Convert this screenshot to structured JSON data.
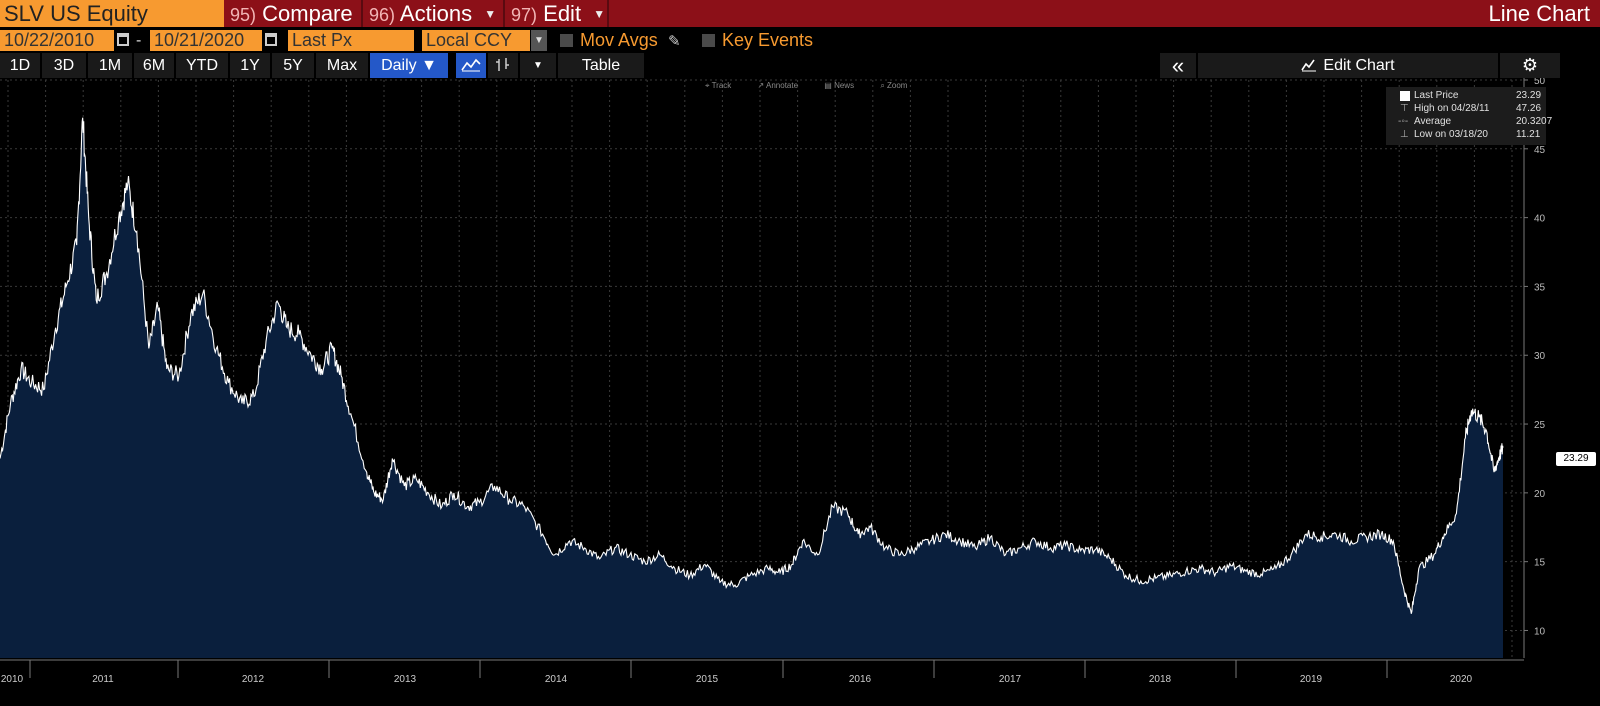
{
  "topbar": {
    "ticker": "SLV US Equity",
    "compare_num": "95)",
    "compare_label": "Compare",
    "actions_num": "96)",
    "actions_label": "Actions",
    "edit_num": "97)",
    "edit_label": "Edit",
    "title": "Line Chart"
  },
  "controls": {
    "start_date": "10/22/2010",
    "end_date": "10/21/2020",
    "dash": "-",
    "field": "Last Px",
    "currency": "Local CCY",
    "mov_avgs": "Mov Avgs",
    "key_events": "Key Events"
  },
  "ranges": [
    "1D",
    "3D",
    "1M",
    "6M",
    "YTD",
    "1Y",
    "5Y",
    "Max"
  ],
  "toolbar": {
    "period": "Daily",
    "table": "Table",
    "edit_chart": "Edit Chart",
    "collapse": "«"
  },
  "minitools": [
    "Track",
    "Annotate",
    "News",
    "Zoom"
  ],
  "legend": {
    "last_label": "Last Price",
    "last_value": "23.29",
    "high_label": "High on 04/28/11",
    "high_value": "47.26",
    "avg_label": "Average",
    "avg_value": "20.3207",
    "low_label": "Low on 03/18/20",
    "low_value": "11.21"
  },
  "colors": {
    "accent": "#f79a30",
    "topbar": "#8c1018",
    "area_fill": "#0a1f3d",
    "line": "#ffffff",
    "selected": "#2458c8"
  },
  "chart_data": {
    "type": "area",
    "ylim": [
      8,
      50
    ],
    "yticks": [
      10,
      15,
      20,
      25,
      30,
      35,
      40,
      45,
      50
    ],
    "xticks": [
      "2010",
      "2011",
      "2012",
      "2013",
      "2014",
      "2015",
      "2016",
      "2017",
      "2018",
      "2019",
      "2020"
    ],
    "last_value": "23.29",
    "series": [
      {
        "x": [
          2010.81,
          2010.88,
          2010.95,
          2011.02,
          2011.1,
          2011.18,
          2011.25,
          2011.32,
          2011.36,
          2011.4,
          2011.45,
          2011.52,
          2011.6,
          2011.66,
          2011.72,
          2011.8,
          2011.86,
          2011.92,
          2012.0,
          2012.08,
          2012.16,
          2012.25,
          2012.33,
          2012.42,
          2012.5,
          2012.58,
          2012.66,
          2012.72,
          2012.8,
          2012.88,
          2012.95,
          2013.02,
          2013.08,
          2013.15,
          2013.25,
          2013.3,
          2013.36,
          2013.42,
          2013.5,
          2013.58,
          2013.66,
          2013.75,
          2013.83,
          2013.92,
          2014.0,
          2014.1,
          2014.2,
          2014.3,
          2014.42,
          2014.5,
          2014.6,
          2014.7,
          2014.8,
          2014.9,
          2015.0,
          2015.1,
          2015.2,
          2015.3,
          2015.4,
          2015.5,
          2015.6,
          2015.7,
          2015.8,
          2015.92,
          2016.0,
          2016.08,
          2016.15,
          2016.25,
          2016.35,
          2016.45,
          2016.52,
          2016.6,
          2016.7,
          2016.8,
          2016.9,
          2017.0,
          2017.1,
          2017.2,
          2017.3,
          2017.4,
          2017.5,
          2017.6,
          2017.7,
          2017.8,
          2017.9,
          2018.0,
          2018.1,
          2018.2,
          2018.3,
          2018.4,
          2018.5,
          2018.6,
          2018.7,
          2018.8,
          2018.9,
          2019.0,
          2019.1,
          2019.2,
          2019.3,
          2019.4,
          2019.5,
          2019.6,
          2019.7,
          2019.8,
          2019.9,
          2020.0,
          2020.08,
          2020.15,
          2020.2,
          2020.25,
          2020.35,
          2020.42,
          2020.5,
          2020.56,
          2020.6,
          2020.65,
          2020.7,
          2020.75,
          2020.78,
          2020.81
        ],
        "y": [
          22.5,
          26.5,
          29.0,
          28.0,
          27.5,
          32.0,
          35.0,
          38.0,
          47.26,
          40.0,
          34.0,
          36.0,
          40.0,
          42.5,
          39.0,
          30.5,
          33.5,
          29.0,
          28.5,
          33.0,
          34.5,
          30.5,
          28.0,
          26.5,
          27.0,
          31.0,
          33.8,
          32.0,
          31.5,
          30.0,
          29.0,
          30.5,
          28.5,
          25.5,
          21.5,
          20.0,
          19.5,
          22.5,
          20.5,
          21.0,
          20.0,
          19.0,
          20.0,
          19.0,
          19.3,
          20.5,
          19.5,
          19.0,
          17.0,
          15.5,
          16.5,
          16.0,
          15.2,
          16.0,
          15.5,
          15.0,
          15.5,
          14.5,
          14.0,
          14.8,
          13.5,
          13.3,
          14.0,
          14.5,
          14.2,
          14.8,
          16.5,
          15.5,
          19.0,
          18.5,
          17.0,
          17.5,
          16.0,
          15.5,
          16.0,
          16.5,
          17.0,
          16.5,
          16.0,
          16.8,
          15.5,
          16.0,
          16.5,
          16.0,
          16.2,
          15.8,
          15.9,
          15.2,
          14.0,
          13.6,
          13.8,
          14.0,
          14.3,
          14.5,
          14.2,
          14.7,
          14.3,
          14.1,
          14.5,
          15.5,
          17.0,
          16.8,
          17.0,
          16.5,
          16.8,
          17.0,
          16.5,
          13.0,
          11.21,
          14.5,
          15.5,
          17.0,
          18.5,
          24.0,
          26.0,
          25.5,
          24.5,
          21.5,
          22.5,
          23.29
        ]
      }
    ]
  }
}
